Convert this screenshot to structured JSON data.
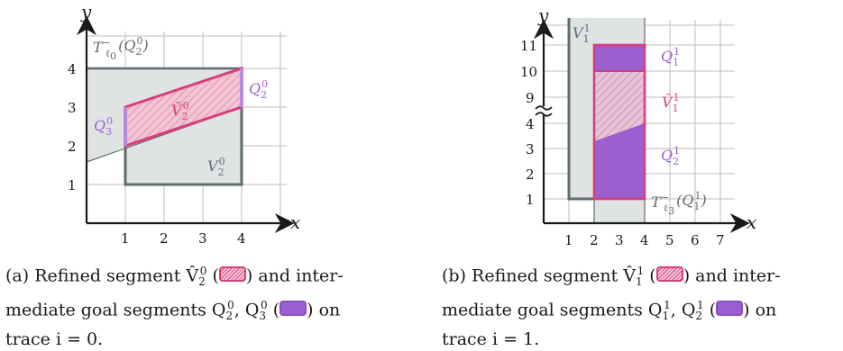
{
  "figure_a": {
    "axis_x": "x",
    "axis_y": "y",
    "x_ticks": [
      "1",
      "2",
      "3",
      "4"
    ],
    "y_ticks": [
      "1",
      "2",
      "3",
      "4"
    ],
    "label_trace": "T",
    "label_trace_sub": "ℓ",
    "label_trace_subsub": "0",
    "label_trace_sup": "−",
    "label_trace_arg": "(Q",
    "label_trace_arg_sub": "2",
    "label_trace_arg_sup": "0",
    "label_trace_close": ")",
    "label_v_hat": "V̂",
    "label_v_hat_sub": "2",
    "label_v_hat_sup": "0",
    "label_q2": "Q",
    "label_q2_sub": "2",
    "label_q2_sup": "0",
    "label_q3": "Q",
    "label_q3_sub": "3",
    "label_q3_sup": "0",
    "label_v": "V",
    "label_v_sub": "2",
    "label_v_sup": "0",
    "caption_line1_pre": "(a) Refined segment V̂",
    "caption_line1_sub": "2",
    "caption_line1_sup": "0",
    "caption_line1_mid": " (",
    "caption_line1_post": ") and inter-",
    "caption_line2_pre": "mediate goal segments Q",
    "caption_line2_sub1": "2",
    "caption_line2_sup1": "0",
    "caption_line2_sep": ", Q",
    "caption_line2_sub2": "3",
    "caption_line2_sup2": "0",
    "caption_line2_mid": " (",
    "caption_line2_post": ") on",
    "caption_line3": "trace i = 0."
  },
  "figure_b": {
    "axis_x": "x",
    "axis_y": "y",
    "x_ticks": [
      "1",
      "2",
      "3",
      "4",
      "5",
      "6",
      "7"
    ],
    "y_ticks": [
      "1",
      "2",
      "3",
      "4",
      "9",
      "10",
      "11"
    ],
    "label_v": "V",
    "label_v_sub": "1",
    "label_v_sup": "1",
    "label_q1": "Q",
    "label_q1_sub": "1",
    "label_q1_sup": "1",
    "label_v_hat": "V̂",
    "label_v_hat_sub": "1",
    "label_v_hat_sup": "1",
    "label_q2": "Q",
    "label_q2_sub": "2",
    "label_q2_sup": "1",
    "label_trace": "T",
    "label_trace_sub": "ℓ",
    "label_trace_subsub": "3",
    "label_trace_sup": "−",
    "label_trace_arg": "(Q",
    "label_trace_arg_sub": "1",
    "label_trace_arg_sup": "1",
    "label_trace_close": ")",
    "caption_line1_pre": "(b) Refined segment V̂",
    "caption_line1_sub": "1",
    "caption_line1_sup": "1",
    "caption_line1_mid": " (",
    "caption_line1_post": ") and inter-",
    "caption_line2_pre": "mediate goal segments Q",
    "caption_line2_sub1": "1",
    "caption_line2_sup1": "1",
    "caption_line2_sep": ", Q",
    "caption_line2_sub2": "2",
    "caption_line2_sup2": "1",
    "caption_line2_mid": " (",
    "caption_line2_post": ") on",
    "caption_line3": "trace i = 1."
  },
  "colors": {
    "region_gray": "#dfe3e3",
    "boundary_gray": "#5f6b6f",
    "pink": "#d63f7c",
    "purple": "#9b5fcf",
    "purple_light": "#b98ad9"
  }
}
